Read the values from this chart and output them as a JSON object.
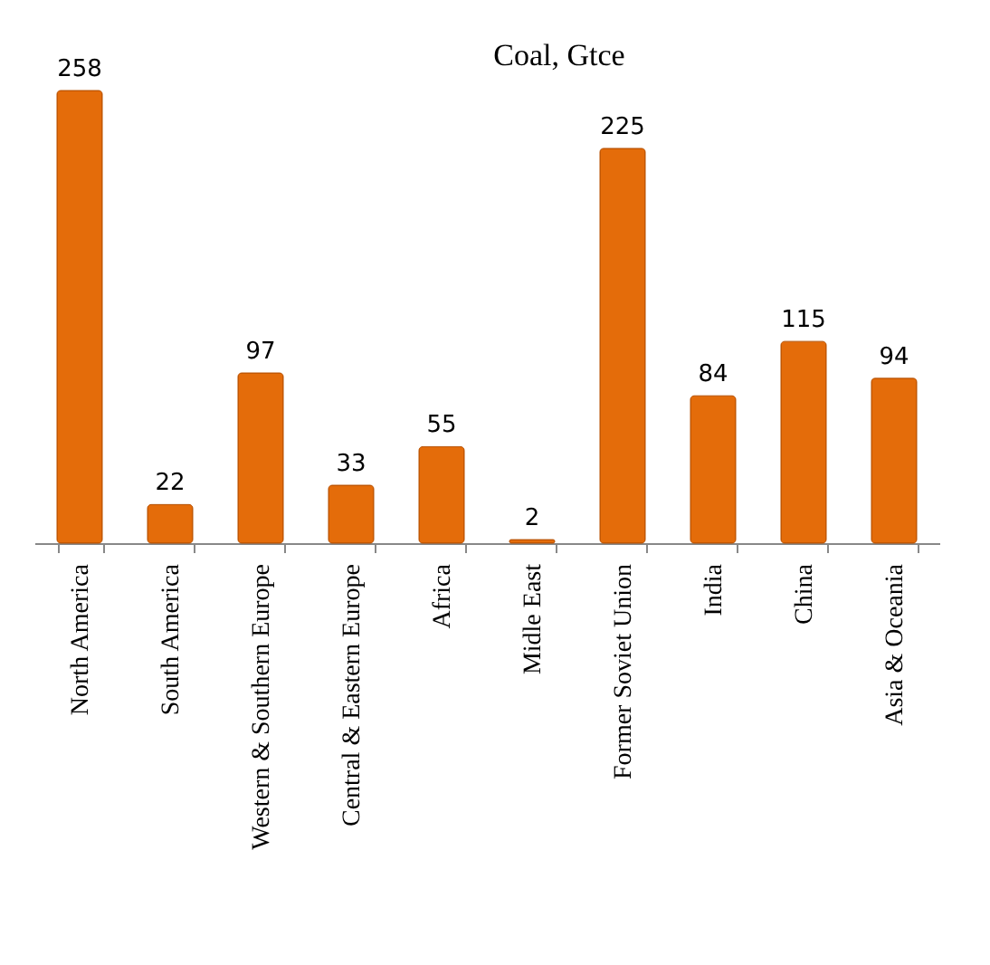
{
  "chart_data": {
    "type": "bar",
    "title": "Coal, Gtce",
    "categories": [
      "North America",
      "South America",
      "Western & Southern Europe",
      "Central & Eastern Europe",
      "Africa",
      "Midle East",
      "Former Soviet Union",
      "India",
      "China",
      "Asia & Oceania"
    ],
    "values": [
      258,
      22,
      97,
      33,
      55,
      2,
      225,
      84,
      115,
      94
    ],
    "color": "#e46c0a",
    "data_labels": true
  }
}
